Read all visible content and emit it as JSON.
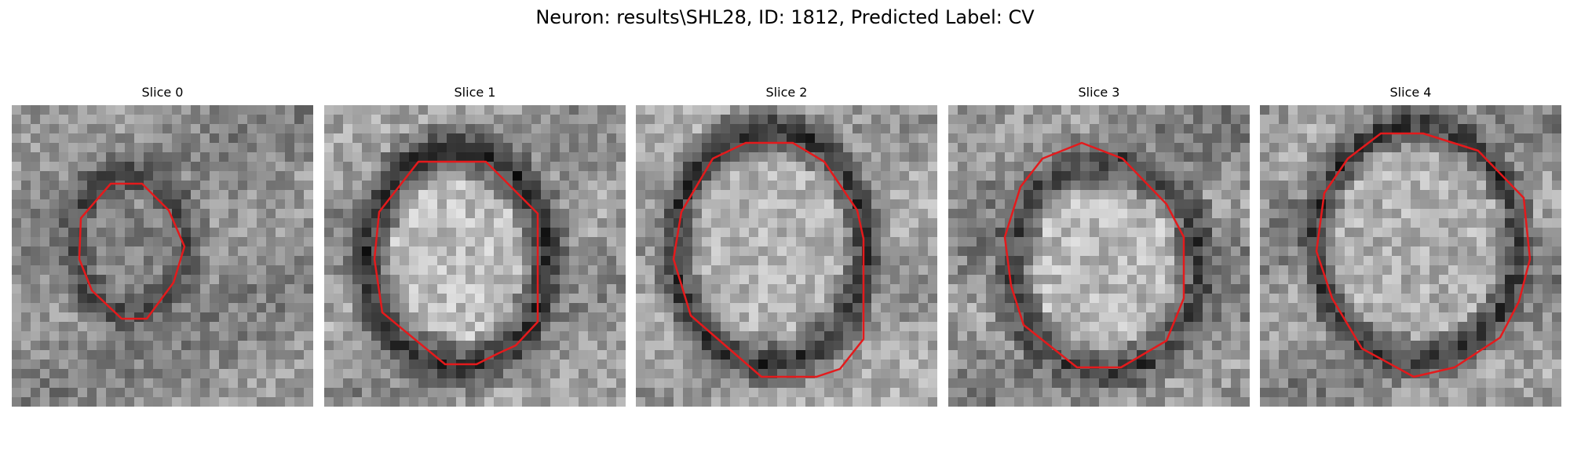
{
  "figure": {
    "title": "Neuron: results\\SHL28, ID: 1812, Predicted Label: CV"
  },
  "panels": [
    {
      "title": "Slice 0",
      "image": {
        "shade_base": 140,
        "shade_variation": 70,
        "ring_shade": 70,
        "interior_shade": 130,
        "highlight_shade": 190
      },
      "contour_color": "#e41a1c"
    },
    {
      "title": "Slice 1",
      "image": {
        "shade_base": 150,
        "shade_variation": 75,
        "ring_shade": 45,
        "interior_shade": 190,
        "highlight_shade": 205
      },
      "contour_color": "#e41a1c"
    },
    {
      "title": "Slice 2",
      "image": {
        "shade_base": 160,
        "shade_variation": 70,
        "ring_shade": 45,
        "interior_shade": 180,
        "highlight_shade": 210
      },
      "contour_color": "#e41a1c"
    },
    {
      "title": "Slice 3",
      "image": {
        "shade_base": 140,
        "shade_variation": 80,
        "ring_shade": 60,
        "interior_shade": 185,
        "highlight_shade": 200
      },
      "contour_color": "#e41a1c"
    },
    {
      "title": "Slice 4",
      "image": {
        "shade_base": 145,
        "shade_variation": 75,
        "ring_shade": 50,
        "interior_shade": 175,
        "highlight_shade": 215
      },
      "contour_color": "#e41a1c"
    }
  ]
}
